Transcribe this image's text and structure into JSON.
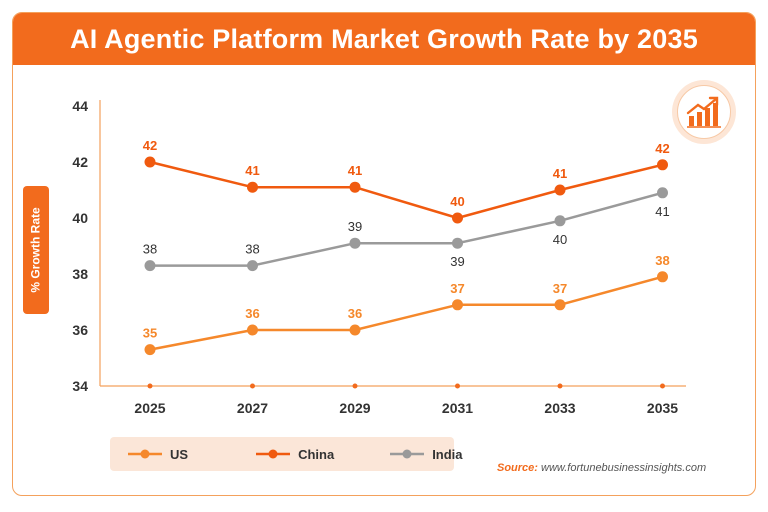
{
  "title": "AI Agentic Platform Market Growth Rate by 2035",
  "icon": "growth-chart-icon",
  "source": {
    "label": "Source:",
    "text": "www.fortunebusinessinsights.com"
  },
  "colors": {
    "title_bg": "#f26b1d",
    "US": "#f5882b",
    "China": "#f05a0f",
    "India": "#9a9a9a",
    "legend_bg": "#fbe6d8"
  },
  "chart_data": {
    "type": "line",
    "title": "AI Agentic Platform Market Growth Rate by 2035",
    "xlabel": "",
    "ylabel": "% Growth Rate",
    "categories": [
      "2025",
      "2027",
      "2029",
      "2031",
      "2033",
      "2035"
    ],
    "ylim": [
      34,
      44
    ],
    "yticks": [
      34,
      36,
      38,
      40,
      42,
      44
    ],
    "grid": false,
    "legend_position": "bottom-left",
    "series": [
      {
        "name": "US",
        "values": [
          35.3,
          36.0,
          36.0,
          36.9,
          36.9,
          37.9
        ],
        "labels": [
          "35",
          "36",
          "36",
          "37",
          "37",
          "38"
        ],
        "label_side": [
          "above",
          "above",
          "above",
          "above",
          "above",
          "above"
        ]
      },
      {
        "name": "China",
        "values": [
          42.0,
          41.1,
          41.1,
          40.0,
          41.0,
          41.9
        ],
        "labels": [
          "42",
          "41",
          "41",
          "40",
          "41",
          "42"
        ],
        "label_side": [
          "above",
          "above",
          "above",
          "above",
          "above",
          "above"
        ]
      },
      {
        "name": "India",
        "values": [
          38.3,
          38.3,
          39.1,
          39.1,
          39.9,
          40.9
        ],
        "labels": [
          "38",
          "38",
          "39",
          "39",
          "40",
          "41"
        ],
        "label_side": [
          "above",
          "above",
          "above",
          "below",
          "below",
          "below"
        ]
      }
    ]
  }
}
